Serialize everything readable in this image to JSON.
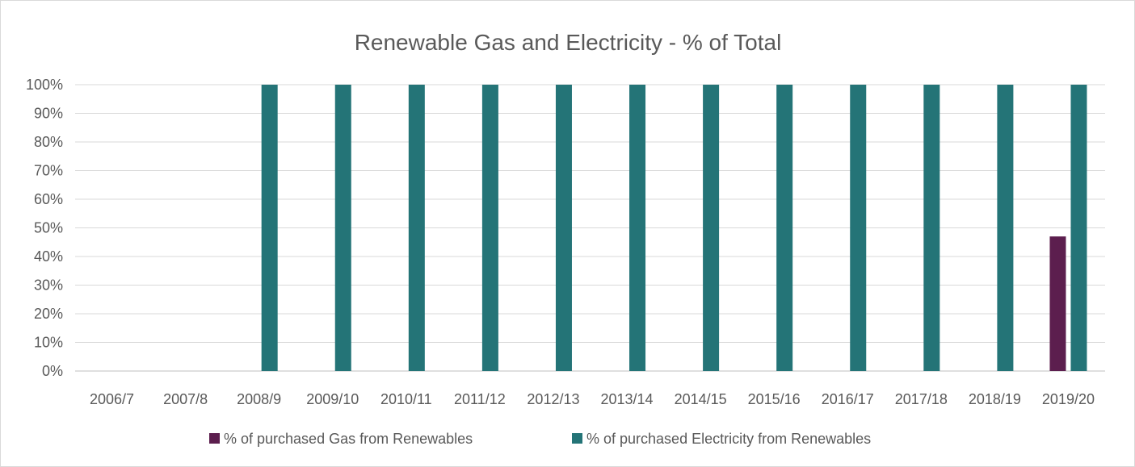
{
  "chart_data": {
    "type": "bar",
    "title": "Renewable Gas and Electricity - % of Total",
    "xlabel": "",
    "ylabel": "",
    "categories": [
      "2006/7",
      "2007/8",
      "2008/9",
      "2009/10",
      "2010/11",
      "2011/12",
      "2012/13",
      "2013/14",
      "2014/15",
      "2015/16",
      "2016/17",
      "2017/18",
      "2018/19",
      "2019/20"
    ],
    "y_ticks": [
      "0%",
      "10%",
      "20%",
      "30%",
      "40%",
      "50%",
      "60%",
      "70%",
      "80%",
      "90%",
      "100%"
    ],
    "ylim": [
      0,
      100
    ],
    "grid": true,
    "legend_position": "bottom",
    "series": [
      {
        "name": "% of purchased Gas from Renewables",
        "color": "#5c1e4e",
        "values": [
          0,
          0,
          0,
          0,
          0,
          0,
          0,
          0,
          0,
          0,
          0,
          0,
          0,
          47
        ]
      },
      {
        "name": "% of purchased Electricity from Renewables",
        "color": "#247477",
        "values": [
          0,
          0,
          100,
          100,
          100,
          100,
          100,
          100,
          100,
          100,
          100,
          100,
          100,
          100
        ]
      }
    ]
  }
}
